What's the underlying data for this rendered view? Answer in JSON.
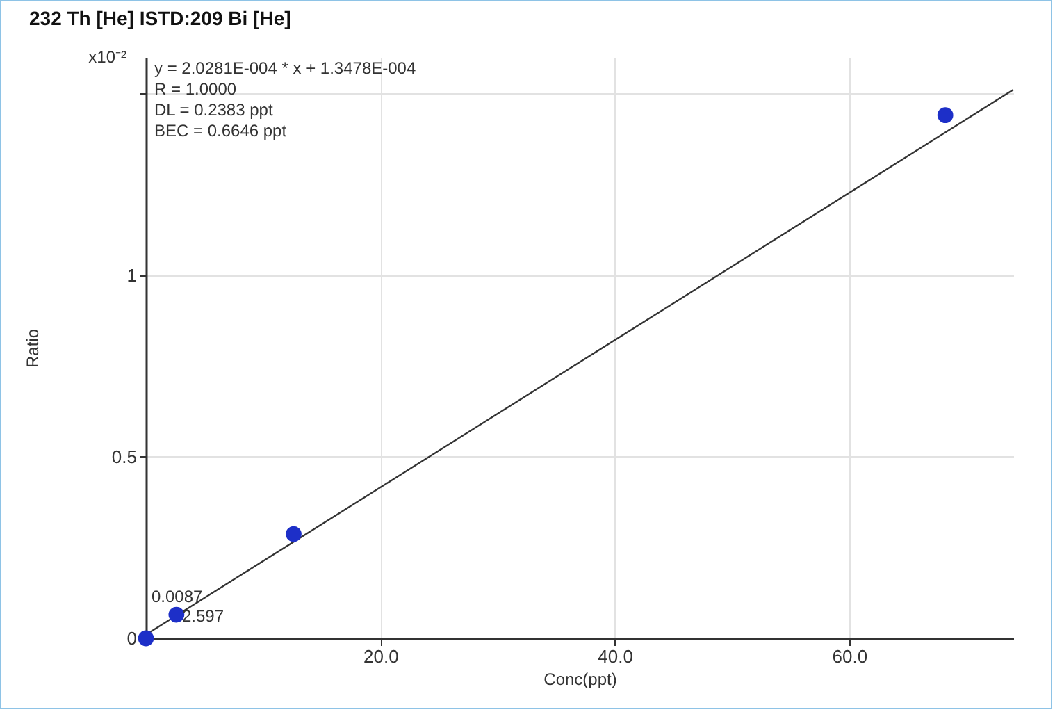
{
  "chart_data": {
    "type": "scatter",
    "title": "232 Th [He] ISTD:209 Bi [He]",
    "xlabel": "Conc(ppt)",
    "ylabel": "Ratio",
    "xlim": [
      0,
      74
    ],
    "ylim": [
      0,
      1.6
    ],
    "xticks": [
      {
        "value": 0,
        "label": null
      },
      {
        "value": 20,
        "label": "20.0"
      },
      {
        "value": 40,
        "label": "40.0"
      },
      {
        "value": 60,
        "label": "60.0"
      }
    ],
    "yticks": [
      0,
      0.5,
      1,
      {
        "value": 1.5,
        "label": null
      }
    ],
    "grid": true,
    "series": [
      {
        "type": "line",
        "color": "#333333",
        "x": [
          0,
          74
        ],
        "values": [
          0.01,
          1.51
        ]
      },
      {
        "color": "#1d2fc8",
        "marker": "circle",
        "x": [
          0,
          2.6,
          12.6,
          68.2
        ],
        "values": [
          0,
          0.065,
          0.287,
          1.44
        ]
      }
    ],
    "annotations": [
      "x10⁻²",
      "y = 2.0281E-004 * x  + 1.3478E-004",
      "R = 1.0000",
      "DL = 0.2383 ppt",
      "BEC = 0.6646 ppt",
      "0.0087",
      "2.597"
    ]
  }
}
